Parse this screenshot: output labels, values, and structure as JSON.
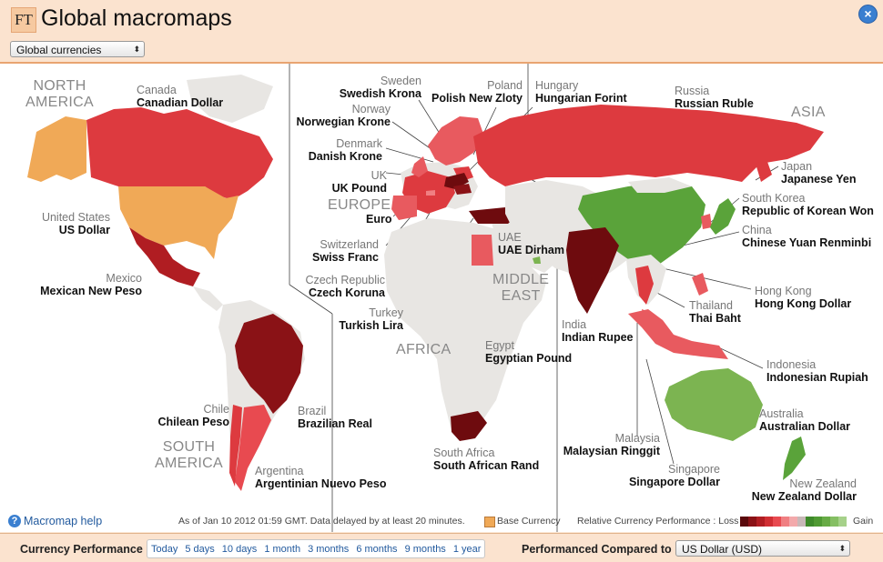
{
  "header": {
    "logo": "FT",
    "title": "Global macromaps",
    "close": "×",
    "dataset_select": {
      "value": "Global currencies",
      "arrow": "⬍"
    }
  },
  "regions": {
    "north_america": [
      "NORTH",
      "AMERICA"
    ],
    "south_america": [
      "SOUTH",
      "AMERICA"
    ],
    "europe": "EUROPE",
    "asia": "ASIA",
    "africa": "AFRICA",
    "middle_east": [
      "MIDDLE",
      "EAST"
    ]
  },
  "labels": {
    "canada": {
      "name": "Canada",
      "currency": "Canadian Dollar"
    },
    "usa": {
      "name": "United States",
      "currency": "US Dollar"
    },
    "mexico": {
      "name": "Mexico",
      "currency": "Mexican New Peso"
    },
    "chile": {
      "name": "Chile",
      "currency": "Chilean Peso"
    },
    "brazil": {
      "name": "Brazil",
      "currency": "Brazilian Real"
    },
    "argentina": {
      "name": "Argentina",
      "currency": "Argentinian Nuevo Peso"
    },
    "sweden": {
      "name": "Sweden",
      "currency": "Swedish Krona"
    },
    "poland": {
      "name": "Poland",
      "currency": "Polish New Zloty"
    },
    "hungary": {
      "name": "Hungary",
      "currency": "Hungarian Forint"
    },
    "norway": {
      "name": "Norway",
      "currency": "Norwegian Krone"
    },
    "denmark": {
      "name": "Denmark",
      "currency": "Danish Krone"
    },
    "uk": {
      "name": "UK",
      "currency": "UK Pound"
    },
    "europe_cur": {
      "currency": "Euro"
    },
    "switzerland": {
      "name": "Switzerland",
      "currency": "Swiss Franc"
    },
    "czech": {
      "name": "Czech Republic",
      "currency": "Czech Koruna"
    },
    "turkey": {
      "name": "Turkey",
      "currency": "Turkish Lira"
    },
    "uae": {
      "name": "UAE",
      "currency": "UAE Dirham"
    },
    "egypt": {
      "name": "Egypt",
      "currency": "Egyptian Pound"
    },
    "south_africa": {
      "name": "South Africa",
      "currency": "South African Rand"
    },
    "russia": {
      "name": "Russia",
      "currency": "Russian Ruble"
    },
    "japan": {
      "name": "Japan",
      "currency": "Japanese Yen"
    },
    "south_korea": {
      "name": "South Korea",
      "currency": "Republic of Korean Won"
    },
    "china": {
      "name": "China",
      "currency": "Chinese Yuan Renminbi"
    },
    "hong_kong": {
      "name": "Hong Kong",
      "currency": "Hong Kong Dollar"
    },
    "thailand": {
      "name": "Thailand",
      "currency": "Thai Baht"
    },
    "india": {
      "name": "India",
      "currency": "Indian Rupee"
    },
    "indonesia": {
      "name": "Indonesia",
      "currency": "Indonesian Rupiah"
    },
    "malaysia": {
      "name": "Malaysia",
      "currency": "Malaysian Ringgit"
    },
    "singapore": {
      "name": "Singapore",
      "currency": "Singapore Dollar"
    },
    "australia": {
      "name": "Australia",
      "currency": "Australian Dollar"
    },
    "new_zealand": {
      "name": "New Zealand",
      "currency": "New Zealand Dollar"
    }
  },
  "colors": {
    "base": "#f0a957",
    "land": "#e8e6e3",
    "loss_light": "#e85a5f",
    "loss_mid": "#dd3a3f",
    "loss_dark": "#b01d22",
    "loss_darkest": "#6e0b0e",
    "gain_mid": "#5aa33a",
    "gain_light": "#7cb451"
  },
  "footer": {
    "help": "Macromap help",
    "help_icon": "?",
    "timestamp": "As of Jan 10 2012 01:59 GMT. Data delayed by at least 20 minutes.",
    "base_currency": "Base Currency",
    "legend_label": "Relative Currency Performance : Loss",
    "legend_gain": "Gain",
    "legend_colors": [
      "#5a0a0c",
      "#8a1216",
      "#b01d22",
      "#d02e33",
      "#e84a50",
      "#f07f82",
      "#f3a9ab",
      "#c8b8b8",
      "#3e8a2a",
      "#4f9a33",
      "#67ab45",
      "#85bf63",
      "#a6d18a"
    ]
  },
  "bottom": {
    "performance_label": "Currency Performance",
    "periods": [
      "Today",
      "5 days",
      "10 days",
      "1 month",
      "3 months",
      "6 months",
      "9 months",
      "1 year"
    ],
    "compared_label": "Performanced Compared to",
    "compared_select": {
      "value": "US Dollar (USD)",
      "arrow": "⬍"
    }
  }
}
